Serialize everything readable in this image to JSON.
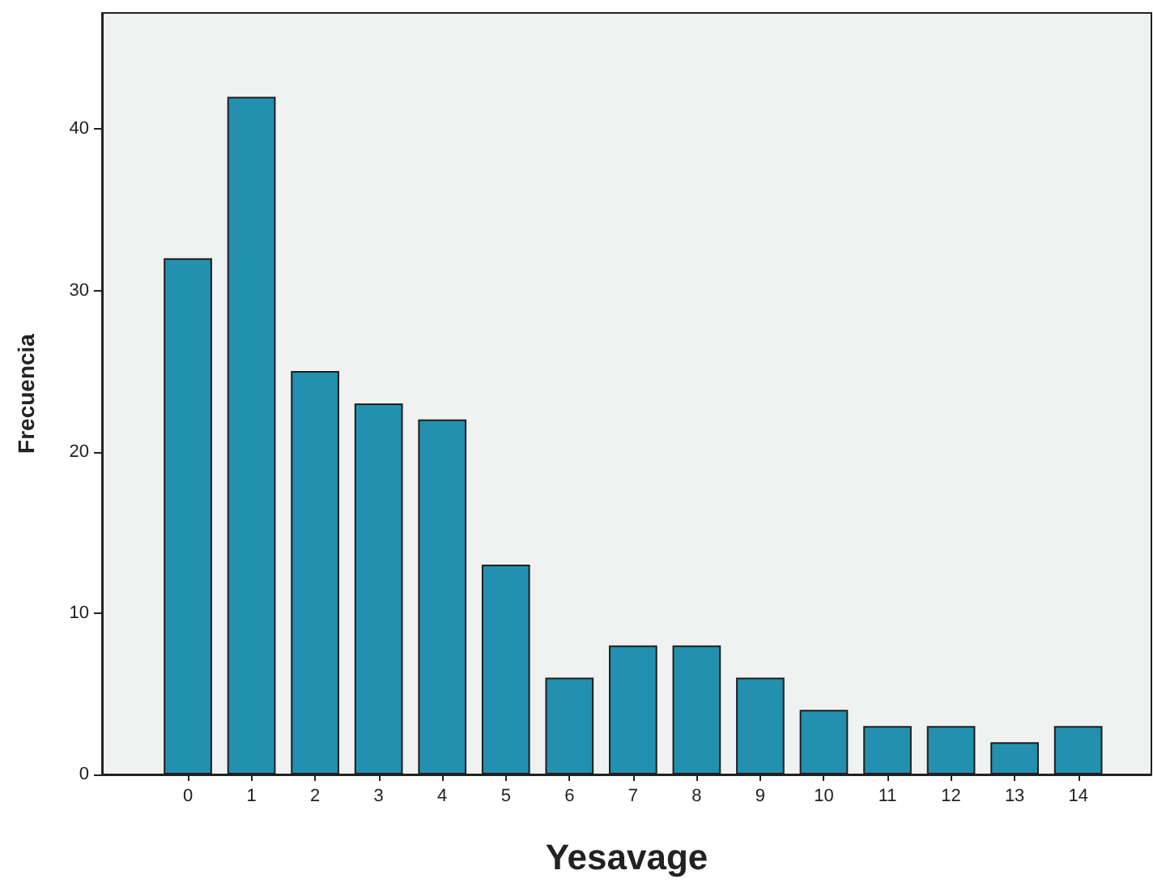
{
  "chart_data": {
    "type": "bar",
    "xlabel": "Yesavage",
    "ylabel": "Frecuencia",
    "x": [
      0,
      1,
      2,
      3,
      4,
      5,
      6,
      7,
      8,
      9,
      10,
      11,
      12,
      13,
      14
    ],
    "values": [
      32,
      42,
      25,
      23,
      22,
      13,
      6,
      8,
      8,
      6,
      4,
      3,
      3,
      2,
      3
    ],
    "color": "#2390b0",
    "xlim": [
      -1.35,
      15.15
    ],
    "xticks": [
      0,
      1,
      2,
      3,
      4,
      5,
      6,
      7,
      8,
      9,
      10,
      11,
      12,
      13,
      14
    ],
    "ylim": [
      0,
      47.2
    ],
    "yticks": [
      0,
      10,
      20,
      30,
      40
    ],
    "grid": false
  }
}
